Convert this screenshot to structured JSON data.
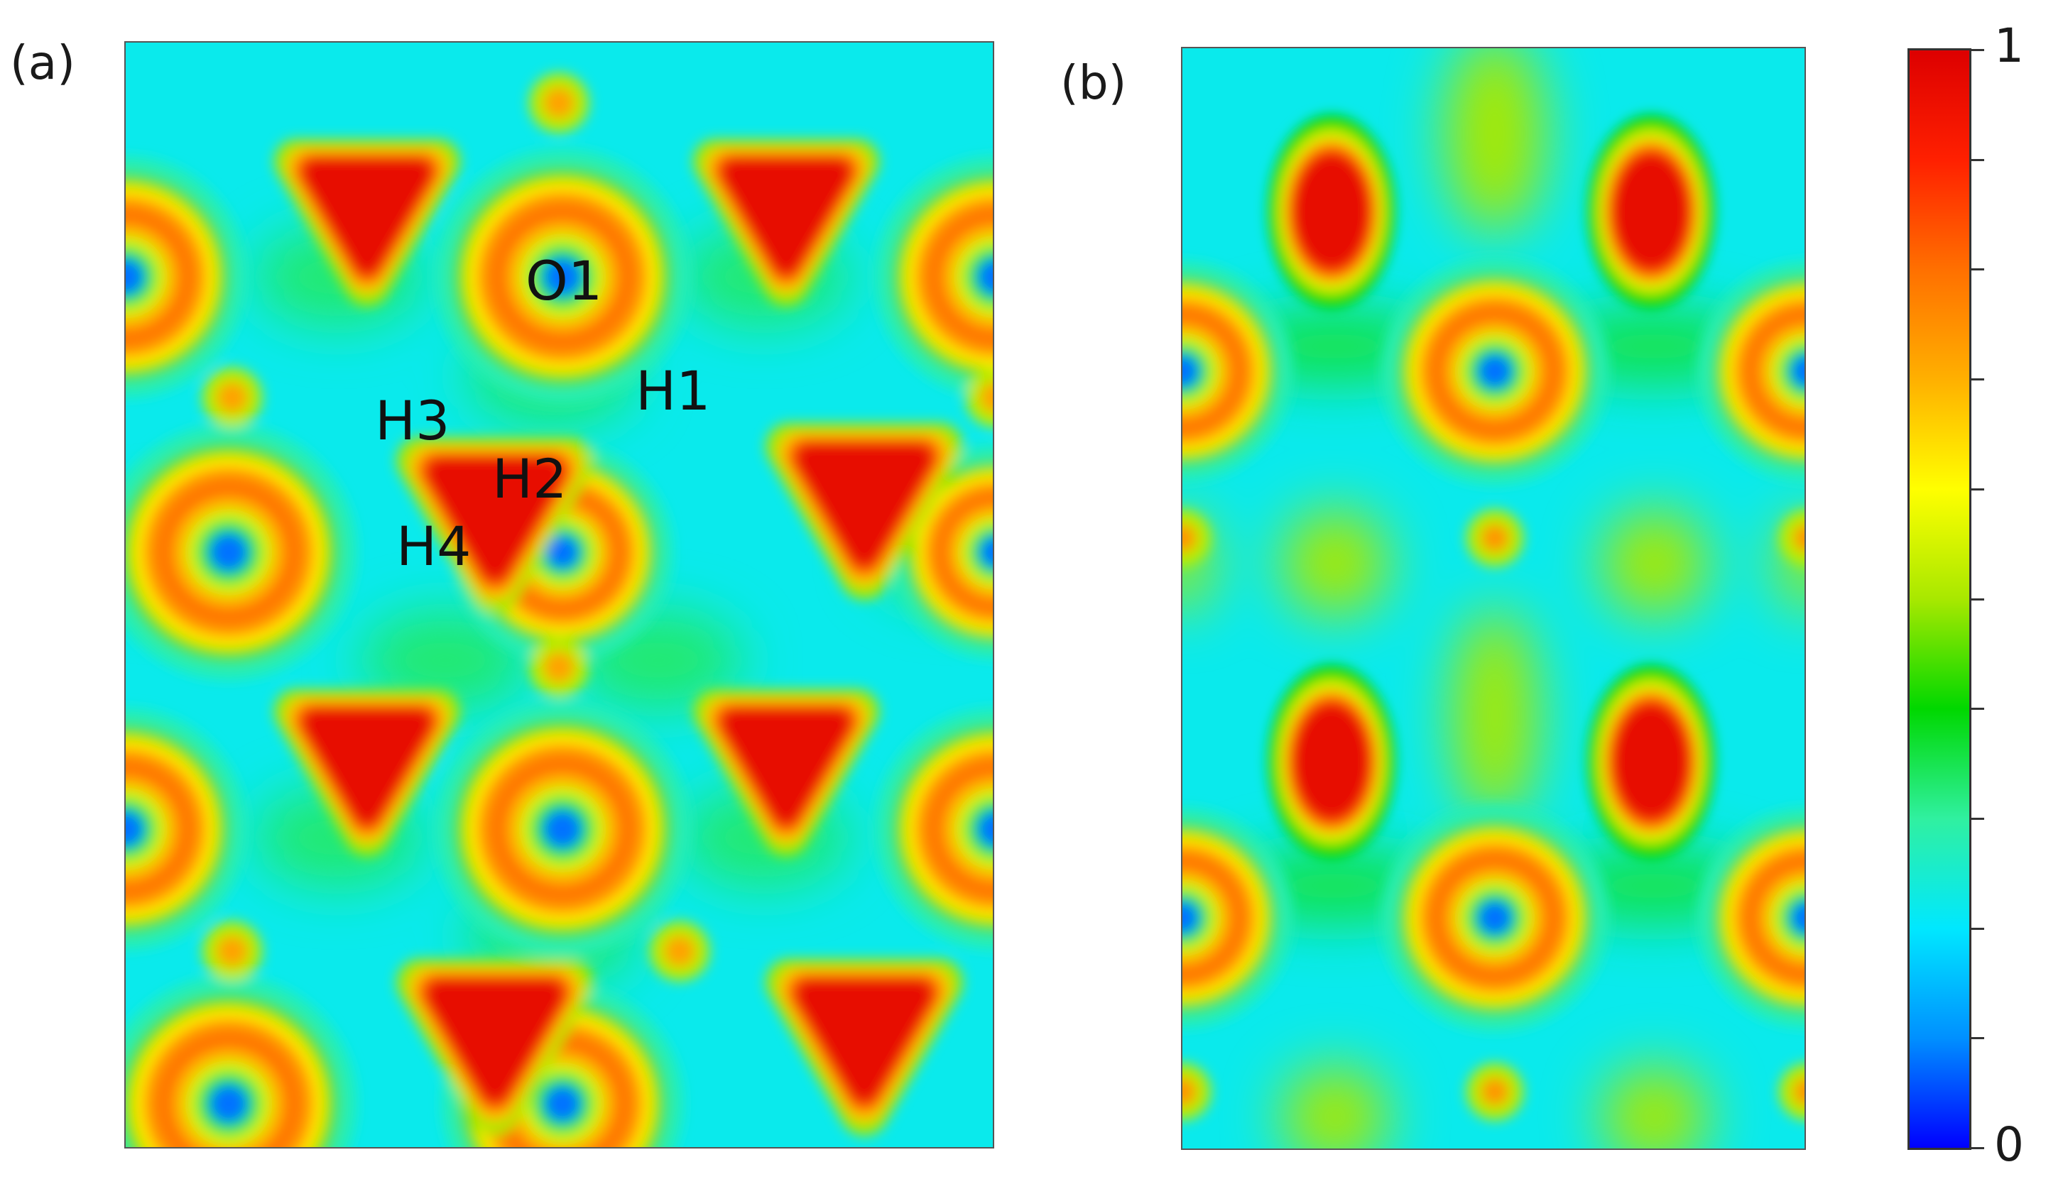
{
  "chart_data": [
    {
      "type": "heatmap",
      "panel_label": "(a)",
      "title": "",
      "xlabel": "",
      "ylabel": "",
      "value_range": [
        0,
        1
      ],
      "annotations": [
        "O1",
        "H1",
        "H2",
        "H3",
        "H4"
      ],
      "features": [
        {
          "kind": "maximum",
          "shape": "triangular lobe",
          "value": 1.0
        },
        {
          "kind": "ring",
          "shape": "annular ring around atom",
          "value": 0.75
        },
        {
          "kind": "minimum",
          "shape": "atom core",
          "value": 0.0
        },
        {
          "kind": "background",
          "shape": "interstitial",
          "value": 0.22
        }
      ]
    },
    {
      "type": "heatmap",
      "panel_label": "(b)",
      "title": "",
      "xlabel": "",
      "ylabel": "",
      "value_range": [
        0,
        1
      ],
      "annotations": [],
      "features": [
        {
          "kind": "maximum",
          "shape": "vertical ellipse",
          "value": 1.0
        },
        {
          "kind": "ring",
          "shape": "annular ring around atom",
          "value": 0.75
        },
        {
          "kind": "minimum",
          "shape": "atom core",
          "value": 0.0
        },
        {
          "kind": "local",
          "shape": "green spot",
          "value": 0.5
        },
        {
          "kind": "background",
          "shape": "interstitial",
          "value": 0.22
        }
      ]
    }
  ],
  "colorbar": {
    "min_label": "0",
    "max_label": "1",
    "min": 0,
    "max": 1,
    "colormap": "jet",
    "tick_count": 11,
    "stops": [
      "#0000ff",
      "#0090ff",
      "#00e8ff",
      "#30f0a0",
      "#00d800",
      "#a8e800",
      "#ffff00",
      "#ffb000",
      "#ff7000",
      "#ff2000",
      "#dd0000"
    ]
  }
}
